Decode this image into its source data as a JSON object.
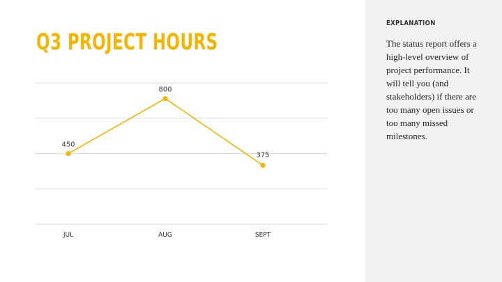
{
  "slide": {
    "title": "Q3 PROJECT HOURS"
  },
  "sidebar": {
    "heading": "EXPLANATION",
    "body": "The status report offers a high-level overview of project performance. It will tell you (and stakeholders) if there are too many open issues or too many missed milestones."
  },
  "colors": {
    "accent": "#f5b400",
    "gridline": "#d9d9d9",
    "sidebar_bg": "#f2f2f2"
  },
  "chart_data": {
    "type": "line",
    "title": "Q3 PROJECT HOURS",
    "categories": [
      "JUL",
      "AUG",
      "SEPT"
    ],
    "series": [
      {
        "values": [
          450,
          800,
          375
        ],
        "data_labels": [
          "450",
          "800",
          "375"
        ]
      }
    ],
    "xlabel": "",
    "ylabel": "",
    "ylim": [
      0,
      900
    ],
    "grid": true,
    "legend": "none"
  }
}
